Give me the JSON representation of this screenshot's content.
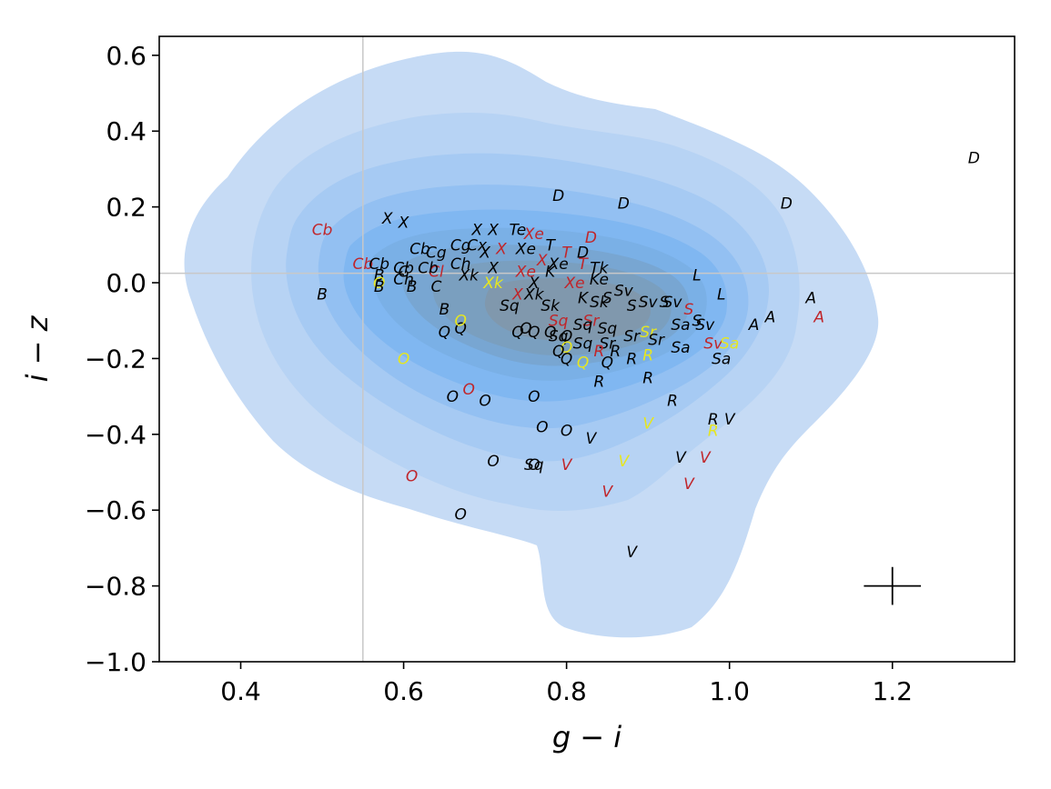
{
  "chart_data": {
    "type": "scatter",
    "title": "",
    "xlabel": "g − i",
    "ylabel": "i − z",
    "xlim": [
      0.3,
      1.35
    ],
    "ylim": [
      -1.0,
      0.65
    ],
    "x_ticks": [
      0.4,
      0.6,
      0.8,
      1.0,
      1.2
    ],
    "y_ticks": [
      0.6,
      0.4,
      0.2,
      0.0,
      -0.2,
      -0.4,
      -0.6,
      -0.8,
      -1.0
    ],
    "x_tick_labels": [
      "0.4",
      "0.6",
      "0.8",
      "1.0",
      "1.2"
    ],
    "y_tick_labels": [
      "0.6",
      "0.4",
      "0.2",
      "0.0",
      "−0.2",
      "−0.4",
      "−0.6",
      "−0.8",
      "−1.0"
    ],
    "reference_lines": {
      "x": 0.55,
      "y": 0.025
    },
    "error_bar": {
      "x": 1.2,
      "y": -0.8,
      "xerr": 0.035,
      "yerr": 0.05
    },
    "density_contours": {
      "levels": 9,
      "color": "#4aa3f0"
    },
    "colors": {
      "black": "#000000",
      "red": "#c0262b",
      "yellow": "#e6e620",
      "reference": "#c8c8c8"
    },
    "points": [
      {
        "label": "D",
        "x": 1.3,
        "y": 0.33,
        "color": "black"
      },
      {
        "label": "D",
        "x": 1.07,
        "y": 0.21,
        "color": "black"
      },
      {
        "label": "D",
        "x": 0.87,
        "y": 0.21,
        "color": "black"
      },
      {
        "label": "D",
        "x": 0.79,
        "y": 0.23,
        "color": "black"
      },
      {
        "label": "D",
        "x": 0.83,
        "y": 0.12,
        "color": "red"
      },
      {
        "label": "D",
        "x": 0.82,
        "y": 0.08,
        "color": "black"
      },
      {
        "label": "A",
        "x": 1.1,
        "y": -0.04,
        "color": "black"
      },
      {
        "label": "A",
        "x": 1.11,
        "y": -0.09,
        "color": "red"
      },
      {
        "label": "A",
        "x": 1.05,
        "y": -0.09,
        "color": "black"
      },
      {
        "label": "A",
        "x": 1.03,
        "y": -0.11,
        "color": "black"
      },
      {
        "label": "L",
        "x": 0.96,
        "y": 0.02,
        "color": "black"
      },
      {
        "label": "L",
        "x": 0.99,
        "y": -0.03,
        "color": "black"
      },
      {
        "label": "Cb",
        "x": 0.5,
        "y": 0.14,
        "color": "red"
      },
      {
        "label": "Cb",
        "x": 0.55,
        "y": 0.05,
        "color": "red"
      },
      {
        "label": "Cb",
        "x": 0.57,
        "y": 0.05,
        "color": "black"
      },
      {
        "label": "Cb",
        "x": 0.6,
        "y": 0.04,
        "color": "black"
      },
      {
        "label": "Cg",
        "x": 0.67,
        "y": 0.1,
        "color": "black"
      },
      {
        "label": "X",
        "x": 0.58,
        "y": 0.17,
        "color": "black"
      },
      {
        "label": "X",
        "x": 0.6,
        "y": 0.16,
        "color": "black"
      },
      {
        "label": "X",
        "x": 0.69,
        "y": 0.14,
        "color": "black"
      },
      {
        "label": "X",
        "x": 0.71,
        "y": 0.14,
        "color": "black"
      },
      {
        "label": "Te",
        "x": 0.74,
        "y": 0.14,
        "color": "black"
      },
      {
        "label": "Xe",
        "x": 0.76,
        "y": 0.13,
        "color": "red"
      },
      {
        "label": "X",
        "x": 0.72,
        "y": 0.09,
        "color": "red"
      },
      {
        "label": "Xe",
        "x": 0.75,
        "y": 0.09,
        "color": "black"
      },
      {
        "label": "T",
        "x": 0.78,
        "y": 0.1,
        "color": "black"
      },
      {
        "label": "T",
        "x": 0.8,
        "y": 0.08,
        "color": "red"
      },
      {
        "label": "X",
        "x": 0.7,
        "y": 0.08,
        "color": "black"
      },
      {
        "label": "Cb",
        "x": 0.62,
        "y": 0.09,
        "color": "black"
      },
      {
        "label": "Cg",
        "x": 0.64,
        "y": 0.08,
        "color": "black"
      },
      {
        "label": "Cx",
        "x": 0.69,
        "y": 0.1,
        "color": "black"
      },
      {
        "label": "X",
        "x": 0.77,
        "y": 0.06,
        "color": "red"
      },
      {
        "label": "Xe",
        "x": 0.79,
        "y": 0.05,
        "color": "black"
      },
      {
        "label": "T",
        "x": 0.82,
        "y": 0.05,
        "color": "red"
      },
      {
        "label": "Tk",
        "x": 0.84,
        "y": 0.04,
        "color": "black"
      },
      {
        "label": "X",
        "x": 0.71,
        "y": 0.04,
        "color": "black"
      },
      {
        "label": "Cl",
        "x": 0.64,
        "y": 0.03,
        "color": "red"
      },
      {
        "label": "C",
        "x": 0.6,
        "y": 0.03,
        "color": "black"
      },
      {
        "label": "Cb",
        "x": 0.63,
        "y": 0.04,
        "color": "black"
      },
      {
        "label": "Ch",
        "x": 0.67,
        "y": 0.05,
        "color": "black"
      },
      {
        "label": "Xk",
        "x": 0.68,
        "y": 0.02,
        "color": "black"
      },
      {
        "label": "Xe",
        "x": 0.75,
        "y": 0.03,
        "color": "red"
      },
      {
        "label": "K",
        "x": 0.78,
        "y": 0.03,
        "color": "black"
      },
      {
        "label": "Xe",
        "x": 0.81,
        "y": 0.0,
        "color": "red"
      },
      {
        "label": "Ke",
        "x": 0.84,
        "y": 0.01,
        "color": "black"
      },
      {
        "label": "Ch",
        "x": 0.6,
        "y": 0.01,
        "color": "black"
      },
      {
        "label": "B",
        "x": 0.57,
        "y": 0.02,
        "color": "black"
      },
      {
        "label": "O",
        "x": 0.57,
        "y": 0.0,
        "color": "yellow"
      },
      {
        "label": "B",
        "x": 0.57,
        "y": -0.01,
        "color": "black"
      },
      {
        "label": "B",
        "x": 0.61,
        "y": -0.01,
        "color": "black"
      },
      {
        "label": "B",
        "x": 0.5,
        "y": -0.03,
        "color": "black"
      },
      {
        "label": "C",
        "x": 0.64,
        "y": -0.01,
        "color": "black"
      },
      {
        "label": "Xk",
        "x": 0.71,
        "y": 0.0,
        "color": "yellow"
      },
      {
        "label": "X",
        "x": 0.76,
        "y": 0.0,
        "color": "black"
      },
      {
        "label": "S",
        "x": 0.85,
        "y": -0.04,
        "color": "black"
      },
      {
        "label": "S",
        "x": 0.88,
        "y": -0.06,
        "color": "black"
      },
      {
        "label": "S",
        "x": 0.92,
        "y": -0.05,
        "color": "black"
      },
      {
        "label": "Sv",
        "x": 0.87,
        "y": -0.02,
        "color": "black"
      },
      {
        "label": "Sv",
        "x": 0.9,
        "y": -0.05,
        "color": "black"
      },
      {
        "label": "Sv",
        "x": 0.93,
        "y": -0.05,
        "color": "black"
      },
      {
        "label": "S",
        "x": 0.95,
        "y": -0.07,
        "color": "red"
      },
      {
        "label": "Sv",
        "x": 0.97,
        "y": -0.11,
        "color": "black"
      },
      {
        "label": "Sa",
        "x": 0.94,
        "y": -0.11,
        "color": "black"
      },
      {
        "label": "S",
        "x": 0.96,
        "y": -0.1,
        "color": "black"
      },
      {
        "label": "Sr",
        "x": 0.9,
        "y": -0.13,
        "color": "yellow"
      },
      {
        "label": "X",
        "x": 0.74,
        "y": -0.03,
        "color": "red"
      },
      {
        "label": "Xk",
        "x": 0.76,
        "y": -0.03,
        "color": "black"
      },
      {
        "label": "Sk",
        "x": 0.78,
        "y": -0.06,
        "color": "black"
      },
      {
        "label": "Sq",
        "x": 0.73,
        "y": -0.06,
        "color": "black"
      },
      {
        "label": "Sk",
        "x": 0.84,
        "y": -0.05,
        "color": "black"
      },
      {
        "label": "K",
        "x": 0.82,
        "y": -0.04,
        "color": "black"
      },
      {
        "label": "B",
        "x": 0.65,
        "y": -0.07,
        "color": "black"
      },
      {
        "label": "Sr",
        "x": 0.83,
        "y": -0.1,
        "color": "red"
      },
      {
        "label": "Sq",
        "x": 0.79,
        "y": -0.1,
        "color": "red"
      },
      {
        "label": "Sq",
        "x": 0.82,
        "y": -0.11,
        "color": "black"
      },
      {
        "label": "Sq",
        "x": 0.85,
        "y": -0.12,
        "color": "black"
      },
      {
        "label": "Sr",
        "x": 0.88,
        "y": -0.14,
        "color": "black"
      },
      {
        "label": "Sr",
        "x": 0.91,
        "y": -0.15,
        "color": "black"
      },
      {
        "label": "Sq",
        "x": 0.79,
        "y": -0.14,
        "color": "black"
      },
      {
        "label": "Sq",
        "x": 0.82,
        "y": -0.16,
        "color": "black"
      },
      {
        "label": "Sr",
        "x": 0.85,
        "y": -0.16,
        "color": "black"
      },
      {
        "label": "Q",
        "x": 0.65,
        "y": -0.13,
        "color": "black"
      },
      {
        "label": "Q",
        "x": 0.67,
        "y": -0.12,
        "color": "black"
      },
      {
        "label": "O",
        "x": 0.67,
        "y": -0.1,
        "color": "yellow"
      },
      {
        "label": "O",
        "x": 0.75,
        "y": -0.12,
        "color": "black"
      },
      {
        "label": "Q",
        "x": 0.74,
        "y": -0.13,
        "color": "black"
      },
      {
        "label": "Q",
        "x": 0.76,
        "y": -0.13,
        "color": "black"
      },
      {
        "label": "Q",
        "x": 0.78,
        "y": -0.13,
        "color": "black"
      },
      {
        "label": "O",
        "x": 0.8,
        "y": -0.14,
        "color": "black"
      },
      {
        "label": "Q",
        "x": 0.8,
        "y": -0.17,
        "color": "yellow"
      },
      {
        "label": "Q",
        "x": 0.79,
        "y": -0.18,
        "color": "black"
      },
      {
        "label": "Q",
        "x": 0.8,
        "y": -0.2,
        "color": "black"
      },
      {
        "label": "Q",
        "x": 0.82,
        "y": -0.21,
        "color": "yellow"
      },
      {
        "label": "R",
        "x": 0.84,
        "y": -0.18,
        "color": "red"
      },
      {
        "label": "R",
        "x": 0.86,
        "y": -0.18,
        "color": "black"
      },
      {
        "label": "R",
        "x": 0.88,
        "y": -0.2,
        "color": "black"
      },
      {
        "label": "R",
        "x": 0.9,
        "y": -0.19,
        "color": "yellow"
      },
      {
        "label": "Sa",
        "x": 0.94,
        "y": -0.17,
        "color": "black"
      },
      {
        "label": "Sv",
        "x": 0.98,
        "y": -0.16,
        "color": "red"
      },
      {
        "label": "Sa",
        "x": 1.0,
        "y": -0.16,
        "color": "yellow"
      },
      {
        "label": "Sa",
        "x": 0.99,
        "y": -0.2,
        "color": "black"
      },
      {
        "label": "Q",
        "x": 0.85,
        "y": -0.21,
        "color": "black"
      },
      {
        "label": "R",
        "x": 0.84,
        "y": -0.26,
        "color": "black"
      },
      {
        "label": "R",
        "x": 0.9,
        "y": -0.25,
        "color": "black"
      },
      {
        "label": "R",
        "x": 0.93,
        "y": -0.31,
        "color": "black"
      },
      {
        "label": "O",
        "x": 0.6,
        "y": -0.2,
        "color": "yellow"
      },
      {
        "label": "O",
        "x": 0.66,
        "y": -0.3,
        "color": "black"
      },
      {
        "label": "O",
        "x": 0.68,
        "y": -0.28,
        "color": "red"
      },
      {
        "label": "O",
        "x": 0.7,
        "y": -0.31,
        "color": "black"
      },
      {
        "label": "O",
        "x": 0.76,
        "y": -0.3,
        "color": "black"
      },
      {
        "label": "O",
        "x": 0.77,
        "y": -0.38,
        "color": "black"
      },
      {
        "label": "O",
        "x": 0.8,
        "y": -0.39,
        "color": "black"
      },
      {
        "label": "V",
        "x": 0.83,
        "y": -0.41,
        "color": "black"
      },
      {
        "label": "V",
        "x": 0.9,
        "y": -0.37,
        "color": "yellow"
      },
      {
        "label": "R",
        "x": 0.98,
        "y": -0.36,
        "color": "black"
      },
      {
        "label": "V",
        "x": 1.0,
        "y": -0.36,
        "color": "black"
      },
      {
        "label": "R",
        "x": 0.98,
        "y": -0.39,
        "color": "yellow"
      },
      {
        "label": "O",
        "x": 0.71,
        "y": -0.47,
        "color": "black"
      },
      {
        "label": "Sq",
        "x": 0.76,
        "y": -0.48,
        "color": "black"
      },
      {
        "label": "O",
        "x": 0.76,
        "y": -0.48,
        "color": "black"
      },
      {
        "label": "V",
        "x": 0.8,
        "y": -0.48,
        "color": "red"
      },
      {
        "label": "V",
        "x": 0.87,
        "y": -0.47,
        "color": "yellow"
      },
      {
        "label": "V",
        "x": 0.94,
        "y": -0.46,
        "color": "black"
      },
      {
        "label": "V",
        "x": 0.97,
        "y": -0.46,
        "color": "red"
      },
      {
        "label": "V",
        "x": 0.95,
        "y": -0.53,
        "color": "red"
      },
      {
        "label": "V",
        "x": 0.85,
        "y": -0.55,
        "color": "red"
      },
      {
        "label": "O",
        "x": 0.61,
        "y": -0.51,
        "color": "red"
      },
      {
        "label": "O",
        "x": 0.67,
        "y": -0.61,
        "color": "black"
      },
      {
        "label": "V",
        "x": 0.88,
        "y": -0.71,
        "color": "black"
      }
    ]
  }
}
